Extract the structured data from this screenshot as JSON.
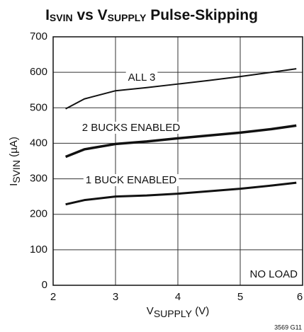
{
  "chart_data": {
    "type": "line",
    "title": [
      "I",
      "SVIN",
      " vs V",
      "SUPPLY",
      " Pulse-Skipping"
    ],
    "x_label": [
      "V",
      "SUPPLY",
      " (V)"
    ],
    "y_label": [
      "I",
      "SVIN",
      " (µA)"
    ],
    "x": [
      2.2,
      2.5,
      3,
      3.5,
      4,
      4.5,
      5,
      5.5,
      5.9
    ],
    "series": [
      {
        "name": "ALL 3",
        "color": "#111111",
        "values": [
          497,
          525,
          548,
          557,
          567,
          577,
          588,
          600,
          610
        ]
      },
      {
        "name": "2 BUCKS ENABLED",
        "color": "#111111",
        "values": [
          362,
          383,
          398,
          405,
          414,
          422,
          430,
          440,
          450
        ]
      },
      {
        "name": "1 BUCK ENABLED",
        "color": "#111111",
        "values": [
          228,
          240,
          250,
          253,
          258,
          265,
          272,
          281,
          289
        ]
      }
    ],
    "annotations": [
      "NO LOAD",
      "3569 G11"
    ],
    "xlim": [
      2,
      6
    ],
    "xticks": [
      2,
      3,
      4,
      5,
      6
    ],
    "ylim": [
      0,
      700
    ],
    "yticks": [
      0,
      100,
      200,
      300,
      400,
      500,
      600,
      700
    ],
    "grid": true
  }
}
